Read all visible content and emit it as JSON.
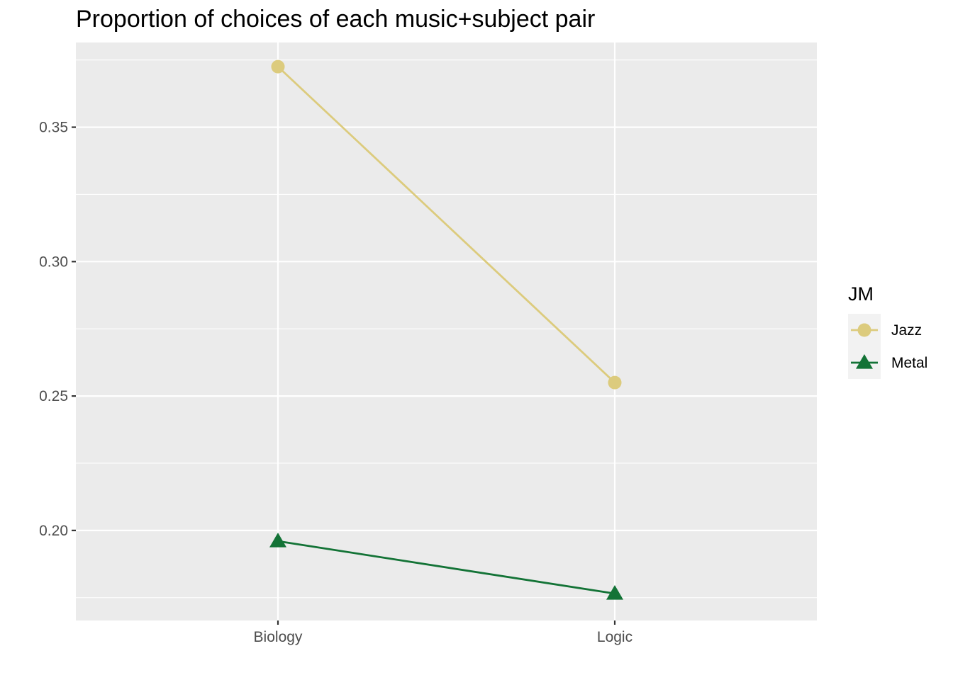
{
  "chart_data": {
    "type": "line",
    "title": "Proportion of choices of each music+subject pair",
    "xlabel": "",
    "ylabel": "",
    "categories": [
      "Biology",
      "Logic"
    ],
    "ylim": [
      0.1665,
      0.3815
    ],
    "y_ticks": [
      0.2,
      0.25,
      0.3,
      0.35
    ],
    "y_tick_labels": [
      "0.20",
      "0.25",
      "0.30",
      "0.35"
    ],
    "grid": true,
    "legend": {
      "title": "JM",
      "position": "right"
    },
    "series": [
      {
        "name": "Jazz",
        "values": [
          0.3725,
          0.255
        ],
        "color": "#DCCB7D",
        "marker": "circle"
      },
      {
        "name": "Metal",
        "values": [
          0.196,
          0.1765
        ],
        "color": "#137336",
        "marker": "triangle"
      }
    ]
  }
}
